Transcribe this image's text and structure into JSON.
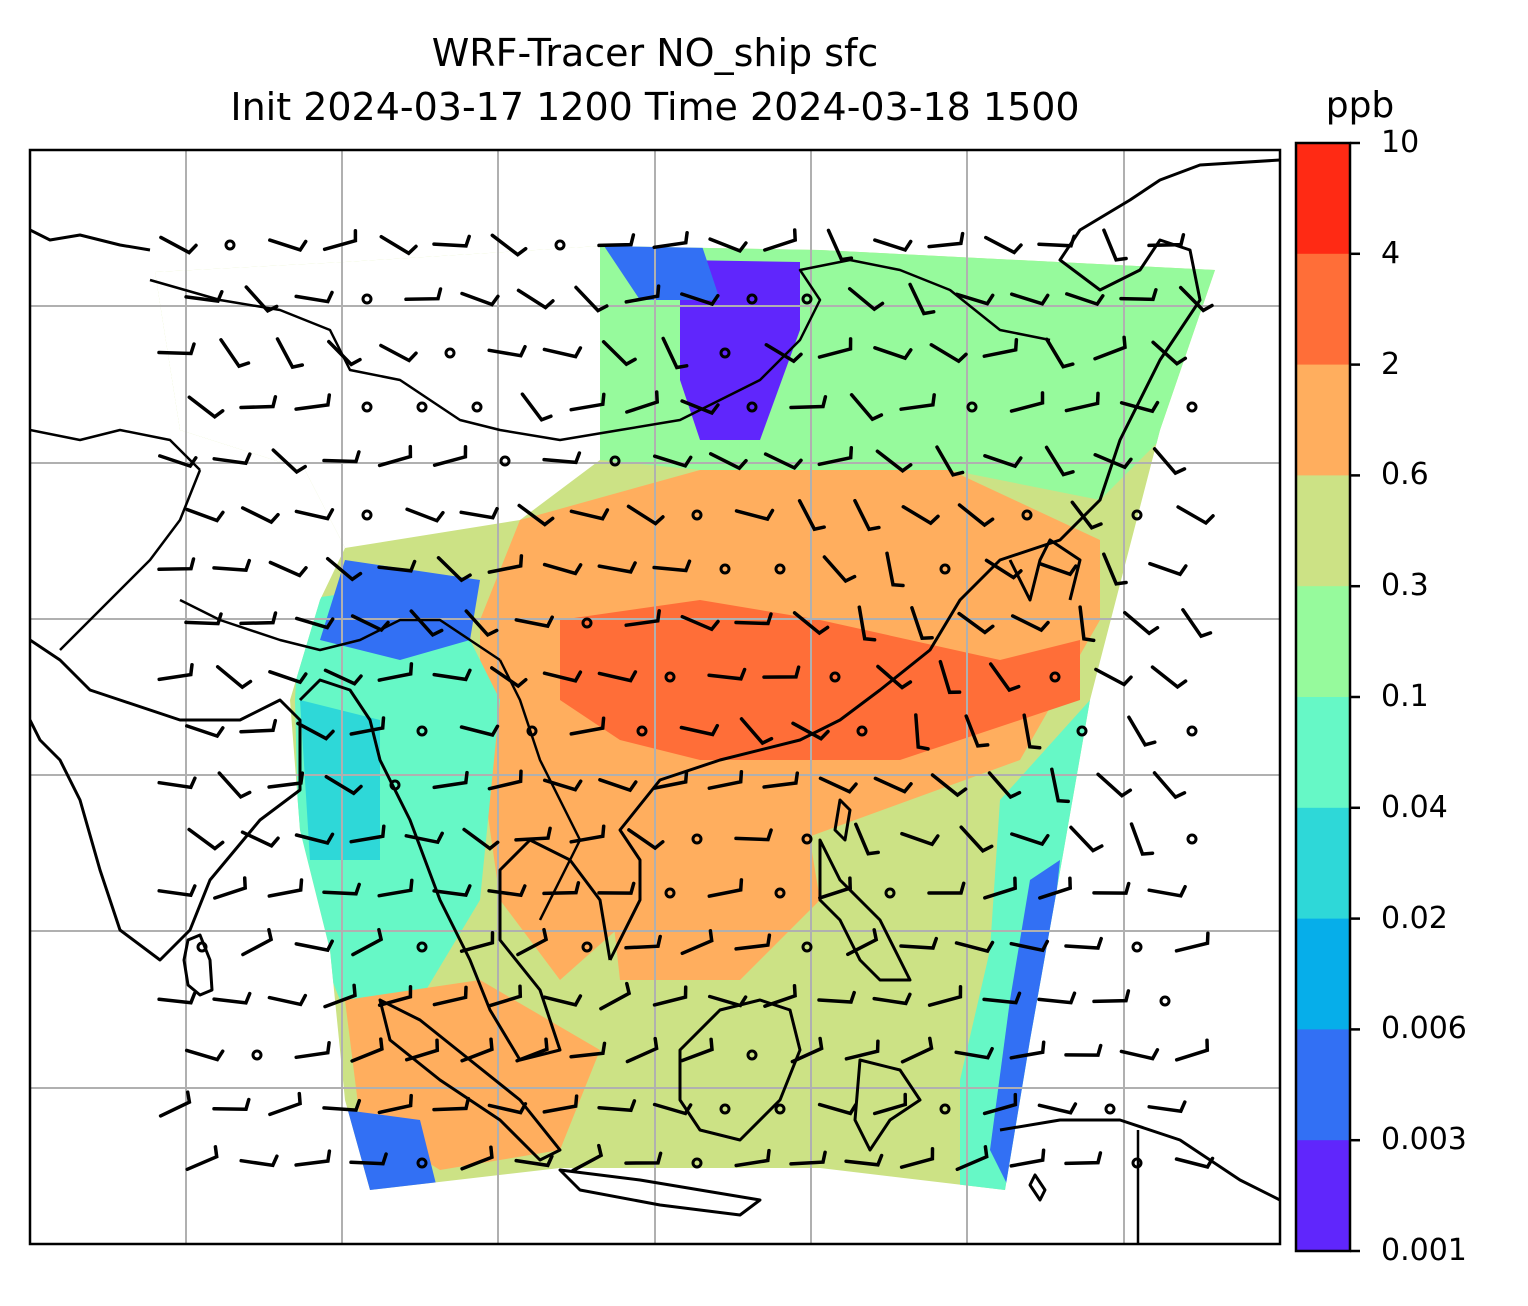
{
  "title": {
    "line1": "WRF-Tracer NO_ship sfc",
    "line2": "Init 2024-03-17 1200 Time 2024-03-18 1500"
  },
  "colorbar": {
    "units": "ppb",
    "levels": [
      "10",
      "4",
      "2",
      "0.6",
      "0.3",
      "0.1",
      "0.04",
      "0.02",
      "0.006",
      "0.003",
      "0.001"
    ],
    "colors": [
      "#ff2a14",
      "#ff6e38",
      "#ffae5e",
      "#cce285",
      "#96fa9c",
      "#66f8c6",
      "#2ed8d8",
      "#06aeea",
      "#3270f4",
      "#6026fc"
    ]
  },
  "map": {
    "variable": "NO_ship",
    "level": "sfc",
    "overlays": [
      "coastlines",
      "country-borders",
      "wind-barbs",
      "gridlines"
    ]
  }
}
